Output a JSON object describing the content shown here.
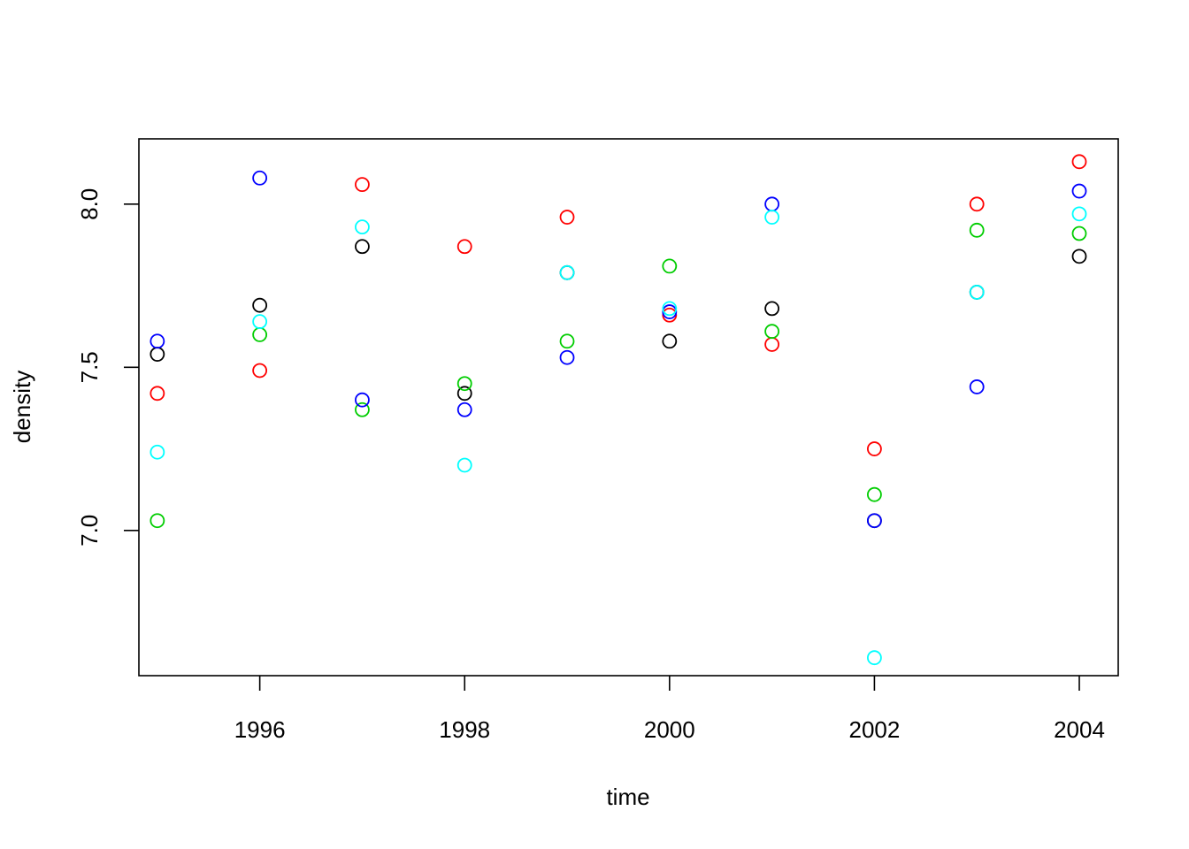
{
  "chart_data": {
    "type": "scatter",
    "title": "",
    "xlabel": "time",
    "ylabel": "density",
    "xlim": [
      1994.82,
      2004.38
    ],
    "ylim": [
      6.555,
      8.2
    ],
    "x_ticks": [
      1996,
      1998,
      2000,
      2002,
      2004
    ],
    "x_tick_labels": [
      "1996",
      "1998",
      "2000",
      "2002",
      "2004"
    ],
    "y_ticks": [
      7.0,
      7.5,
      8.0
    ],
    "y_tick_labels": [
      "7.0",
      "7.5",
      "8.0"
    ],
    "grid": false,
    "legend": "none",
    "marker": "open-circle",
    "series": [
      {
        "color": "#000000",
        "x": [
          1995,
          1996,
          1997,
          1998,
          1999,
          2000,
          2001,
          2002,
          2003,
          2004
        ],
        "y": [
          7.54,
          7.69,
          7.87,
          7.42,
          7.79,
          7.58,
          7.68,
          7.03,
          7.73,
          7.84
        ]
      },
      {
        "color": "#ff0000",
        "x": [
          1995,
          1996,
          1997,
          1998,
          1999,
          2000,
          2001,
          2002,
          2003,
          2004
        ],
        "y": [
          7.42,
          7.49,
          8.06,
          7.87,
          7.96,
          7.66,
          7.57,
          7.25,
          8.0,
          8.13
        ]
      },
      {
        "color": "#00cd00",
        "x": [
          1995,
          1996,
          1997,
          1998,
          1999,
          2000,
          2001,
          2002,
          2003,
          2004
        ],
        "y": [
          7.03,
          7.6,
          7.37,
          7.45,
          7.58,
          7.81,
          7.61,
          7.11,
          7.92,
          7.91
        ]
      },
      {
        "color": "#0000ff",
        "x": [
          1995,
          1996,
          1997,
          1998,
          1999,
          2000,
          2001,
          2002,
          2003,
          2004
        ],
        "y": [
          7.58,
          8.08,
          7.4,
          7.37,
          7.53,
          7.67,
          8.0,
          7.03,
          7.44,
          8.04
        ]
      },
      {
        "color": "#00ffff",
        "x": [
          1995,
          1996,
          1997,
          1998,
          1999,
          2000,
          2001,
          2002,
          2003,
          2004
        ],
        "y": [
          7.24,
          7.64,
          7.93,
          7.2,
          7.79,
          7.68,
          7.96,
          6.61,
          7.73,
          7.97
        ]
      }
    ]
  }
}
